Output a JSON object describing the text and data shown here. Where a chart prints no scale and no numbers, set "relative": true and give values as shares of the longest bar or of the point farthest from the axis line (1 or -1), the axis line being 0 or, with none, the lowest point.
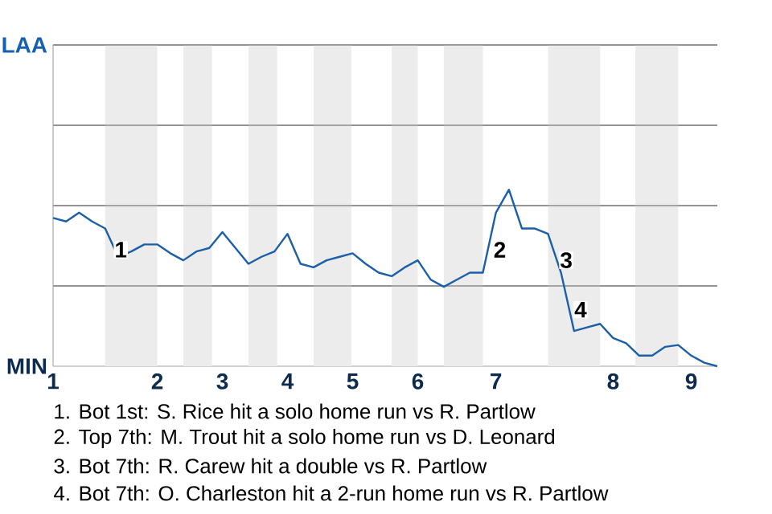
{
  "chart_data": {
    "type": "line",
    "color": "#1a5fa8",
    "relative": true,
    "categories": [
      "1",
      null,
      null,
      null,
      null,
      null,
      null,
      null,
      "2",
      null,
      null,
      null,
      null,
      "3",
      null,
      null,
      null,
      null,
      "4",
      null,
      null,
      null,
      null,
      "5",
      null,
      null,
      null,
      null,
      "6",
      null,
      null,
      null,
      null,
      null,
      "7",
      null,
      null,
      null,
      null,
      null,
      null,
      null,
      null,
      "8",
      null,
      null,
      null,
      null,
      null,
      "9",
      null,
      null
    ],
    "values": [
      0.84,
      0.82,
      0.87,
      0.82,
      0.78,
      0.62,
      0.65,
      0.69,
      0.69,
      0.64,
      0.6,
      0.65,
      0.67,
      0.76,
      0.67,
      0.58,
      0.62,
      0.65,
      0.75,
      0.58,
      0.56,
      0.6,
      0.62,
      0.64,
      0.58,
      0.53,
      0.51,
      0.56,
      0.6,
      0.49,
      0.45,
      0.49,
      0.53,
      0.53,
      0.87,
      1,
      0.78,
      0.78,
      0.75,
      0.53,
      0.2,
      0.22,
      0.24,
      0.16,
      0.13,
      0.06,
      0.06,
      0.11,
      0.12,
      0.06,
      0.02,
      0
    ],
    "grid": "y",
    "annotations": [
      "LAA",
      "MIN",
      "1",
      "2",
      "3",
      "4",
      "1. Bot 1st: S. Rice hit a solo home run vs R. Partlow",
      "2. Top 7th: M. Trout hit a solo home run vs D. Leonard",
      "3. Bot 7th: R. Carew hit a double vs R. Partlow",
      "4. Bot 7th: O. Charleston hit a 2-run home run vs R. Partlow"
    ]
  }
}
